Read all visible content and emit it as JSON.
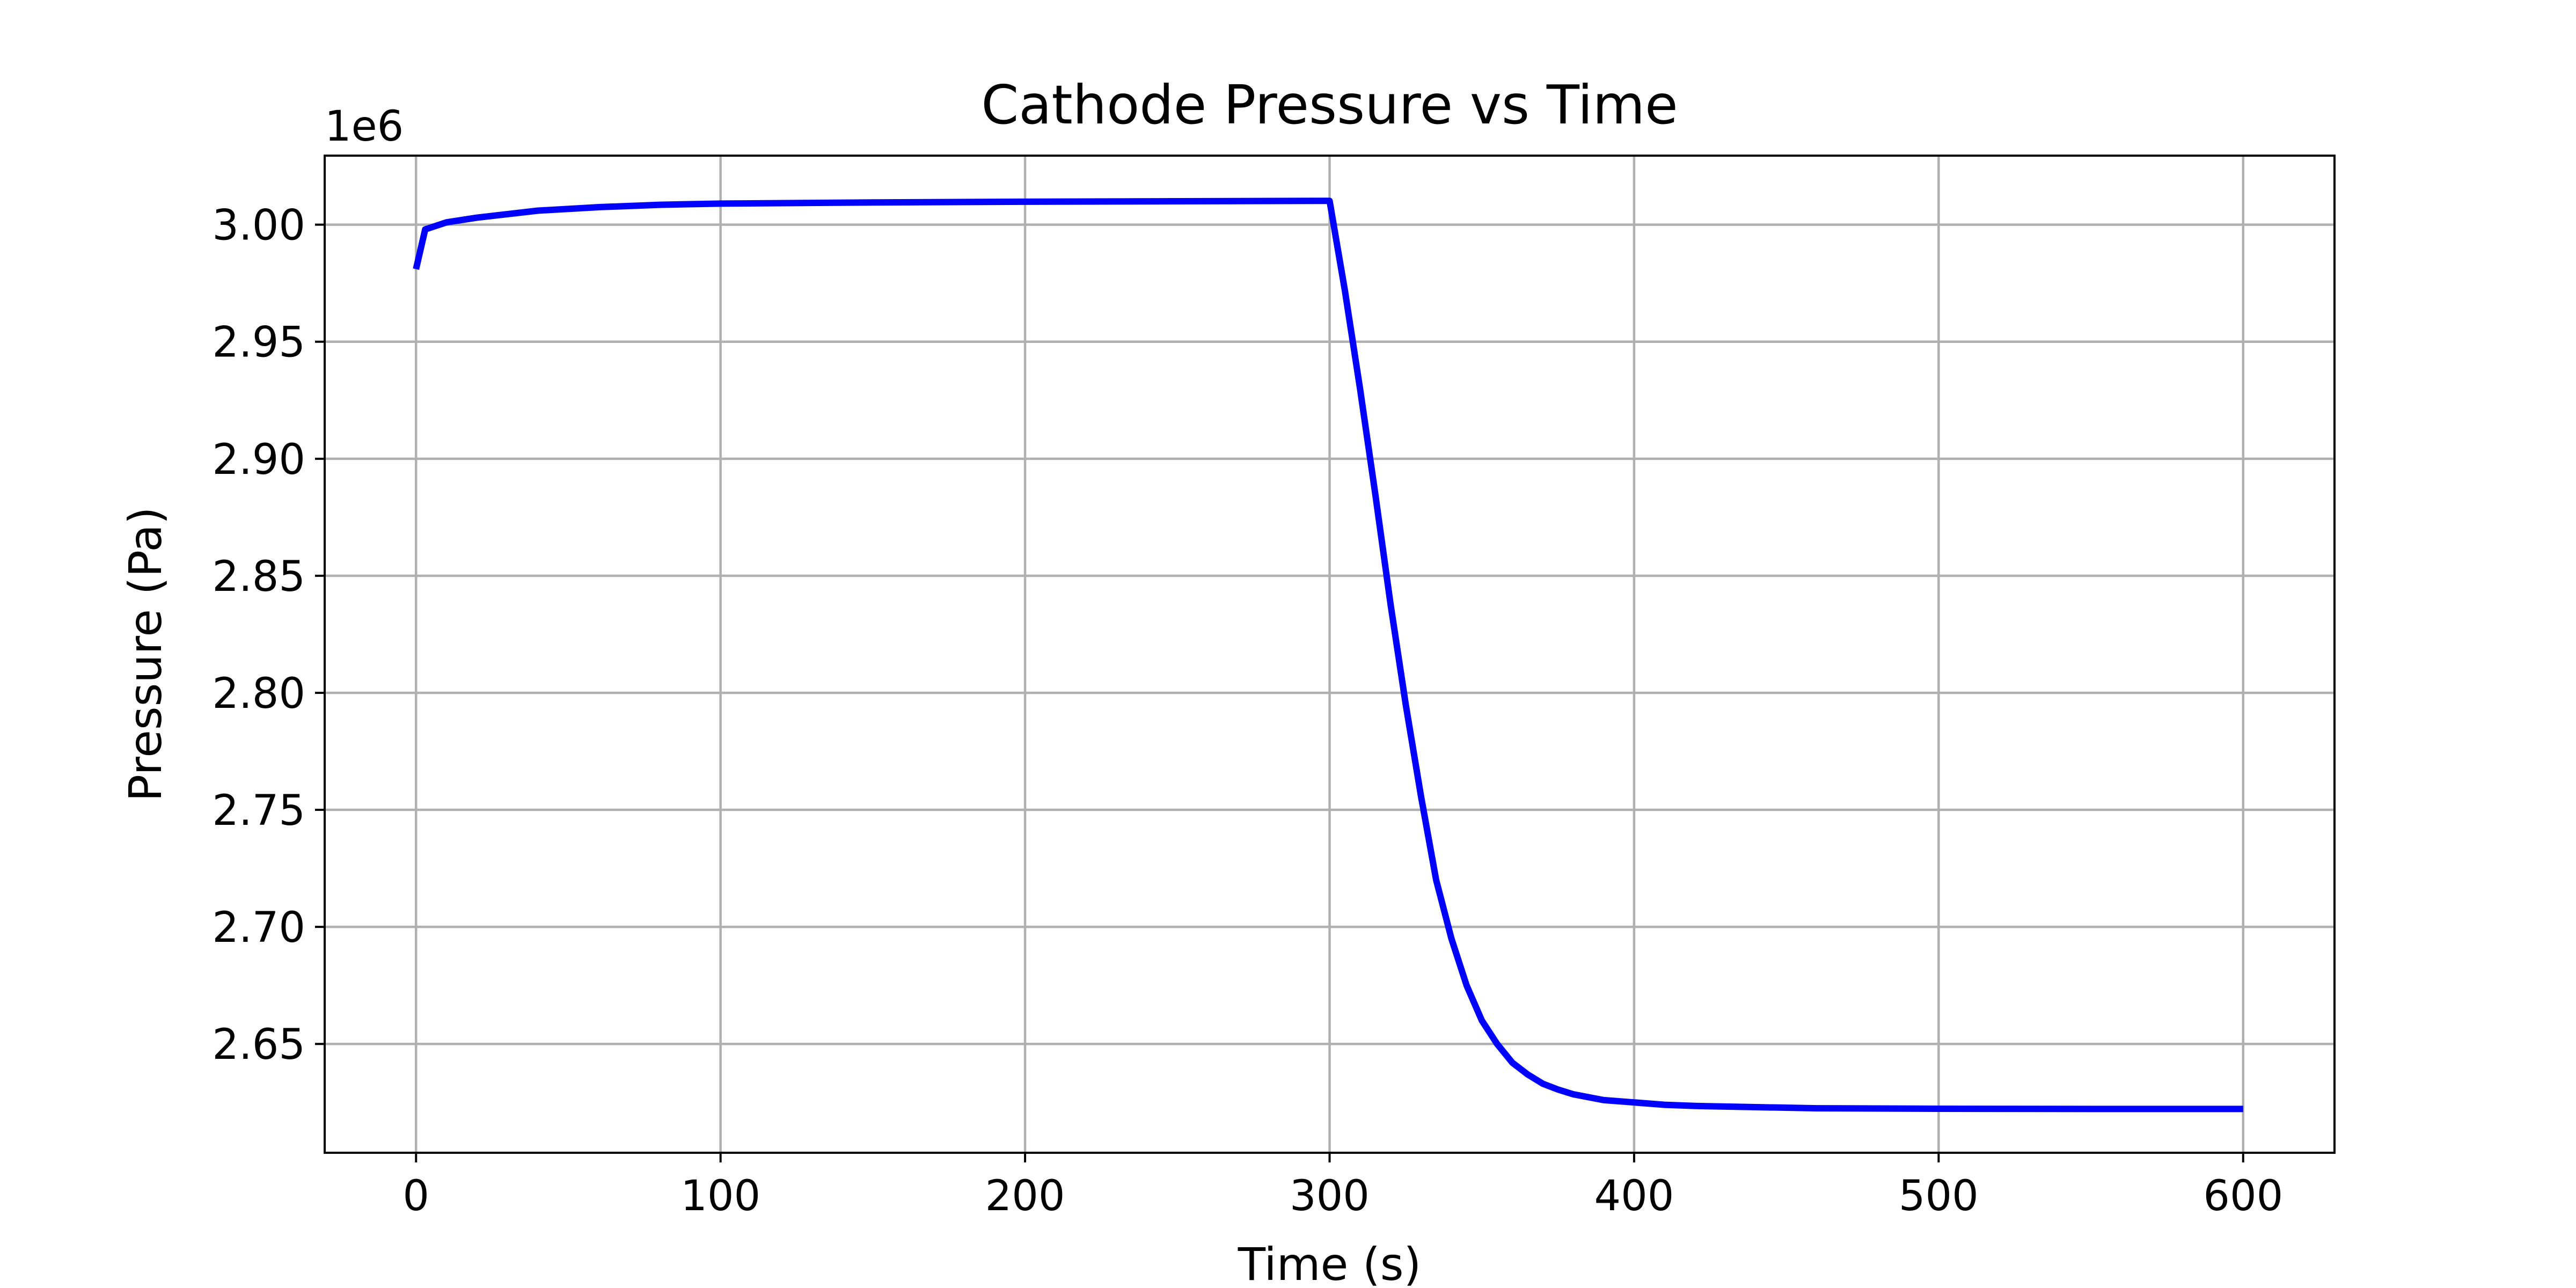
{
  "chart_data": {
    "type": "line",
    "title": "Cathode Pressure vs Time",
    "xlabel": "Time (s)",
    "ylabel": "Pressure (Pa)",
    "y_offset_label": "1e6",
    "xlim": [
      -30,
      630
    ],
    "ylim": [
      2.6035,
      3.0295
    ],
    "x_ticks": [
      0,
      100,
      200,
      300,
      400,
      500,
      600
    ],
    "x_tick_labels": [
      "0",
      "100",
      "200",
      "300",
      "400",
      "500",
      "600"
    ],
    "y_ticks": [
      2.65,
      2.7,
      2.75,
      2.8,
      2.85,
      2.9,
      2.95,
      3.0
    ],
    "y_tick_labels": [
      "2.65",
      "2.70",
      "2.75",
      "2.80",
      "2.85",
      "2.90",
      "2.95",
      "3.00"
    ],
    "y_unit_note": "values in units of 1e6 Pa",
    "grid": true,
    "legend": "none",
    "series": [
      {
        "color": "#0000ff",
        "x": [
          0,
          3,
          10,
          20,
          40,
          60,
          80,
          100,
          150,
          200,
          250,
          299,
          300,
          305,
          310,
          315,
          320,
          325,
          330,
          335,
          340,
          345,
          350,
          355,
          360,
          365,
          370,
          375,
          380,
          390,
          400,
          410,
          420,
          440,
          460,
          500,
          550,
          600
        ],
        "y": [
          2.981,
          2.998,
          3.001,
          3.003,
          3.006,
          3.0075,
          3.0085,
          3.009,
          3.0095,
          3.0098,
          3.01,
          3.0102,
          3.0102,
          2.972,
          2.93,
          2.885,
          2.838,
          2.795,
          2.756,
          2.72,
          2.695,
          2.675,
          2.66,
          2.65,
          2.642,
          2.637,
          2.633,
          2.6305,
          2.6285,
          2.626,
          2.625,
          2.624,
          2.6235,
          2.623,
          2.6225,
          2.6223,
          2.6222,
          2.6222
        ]
      }
    ]
  }
}
